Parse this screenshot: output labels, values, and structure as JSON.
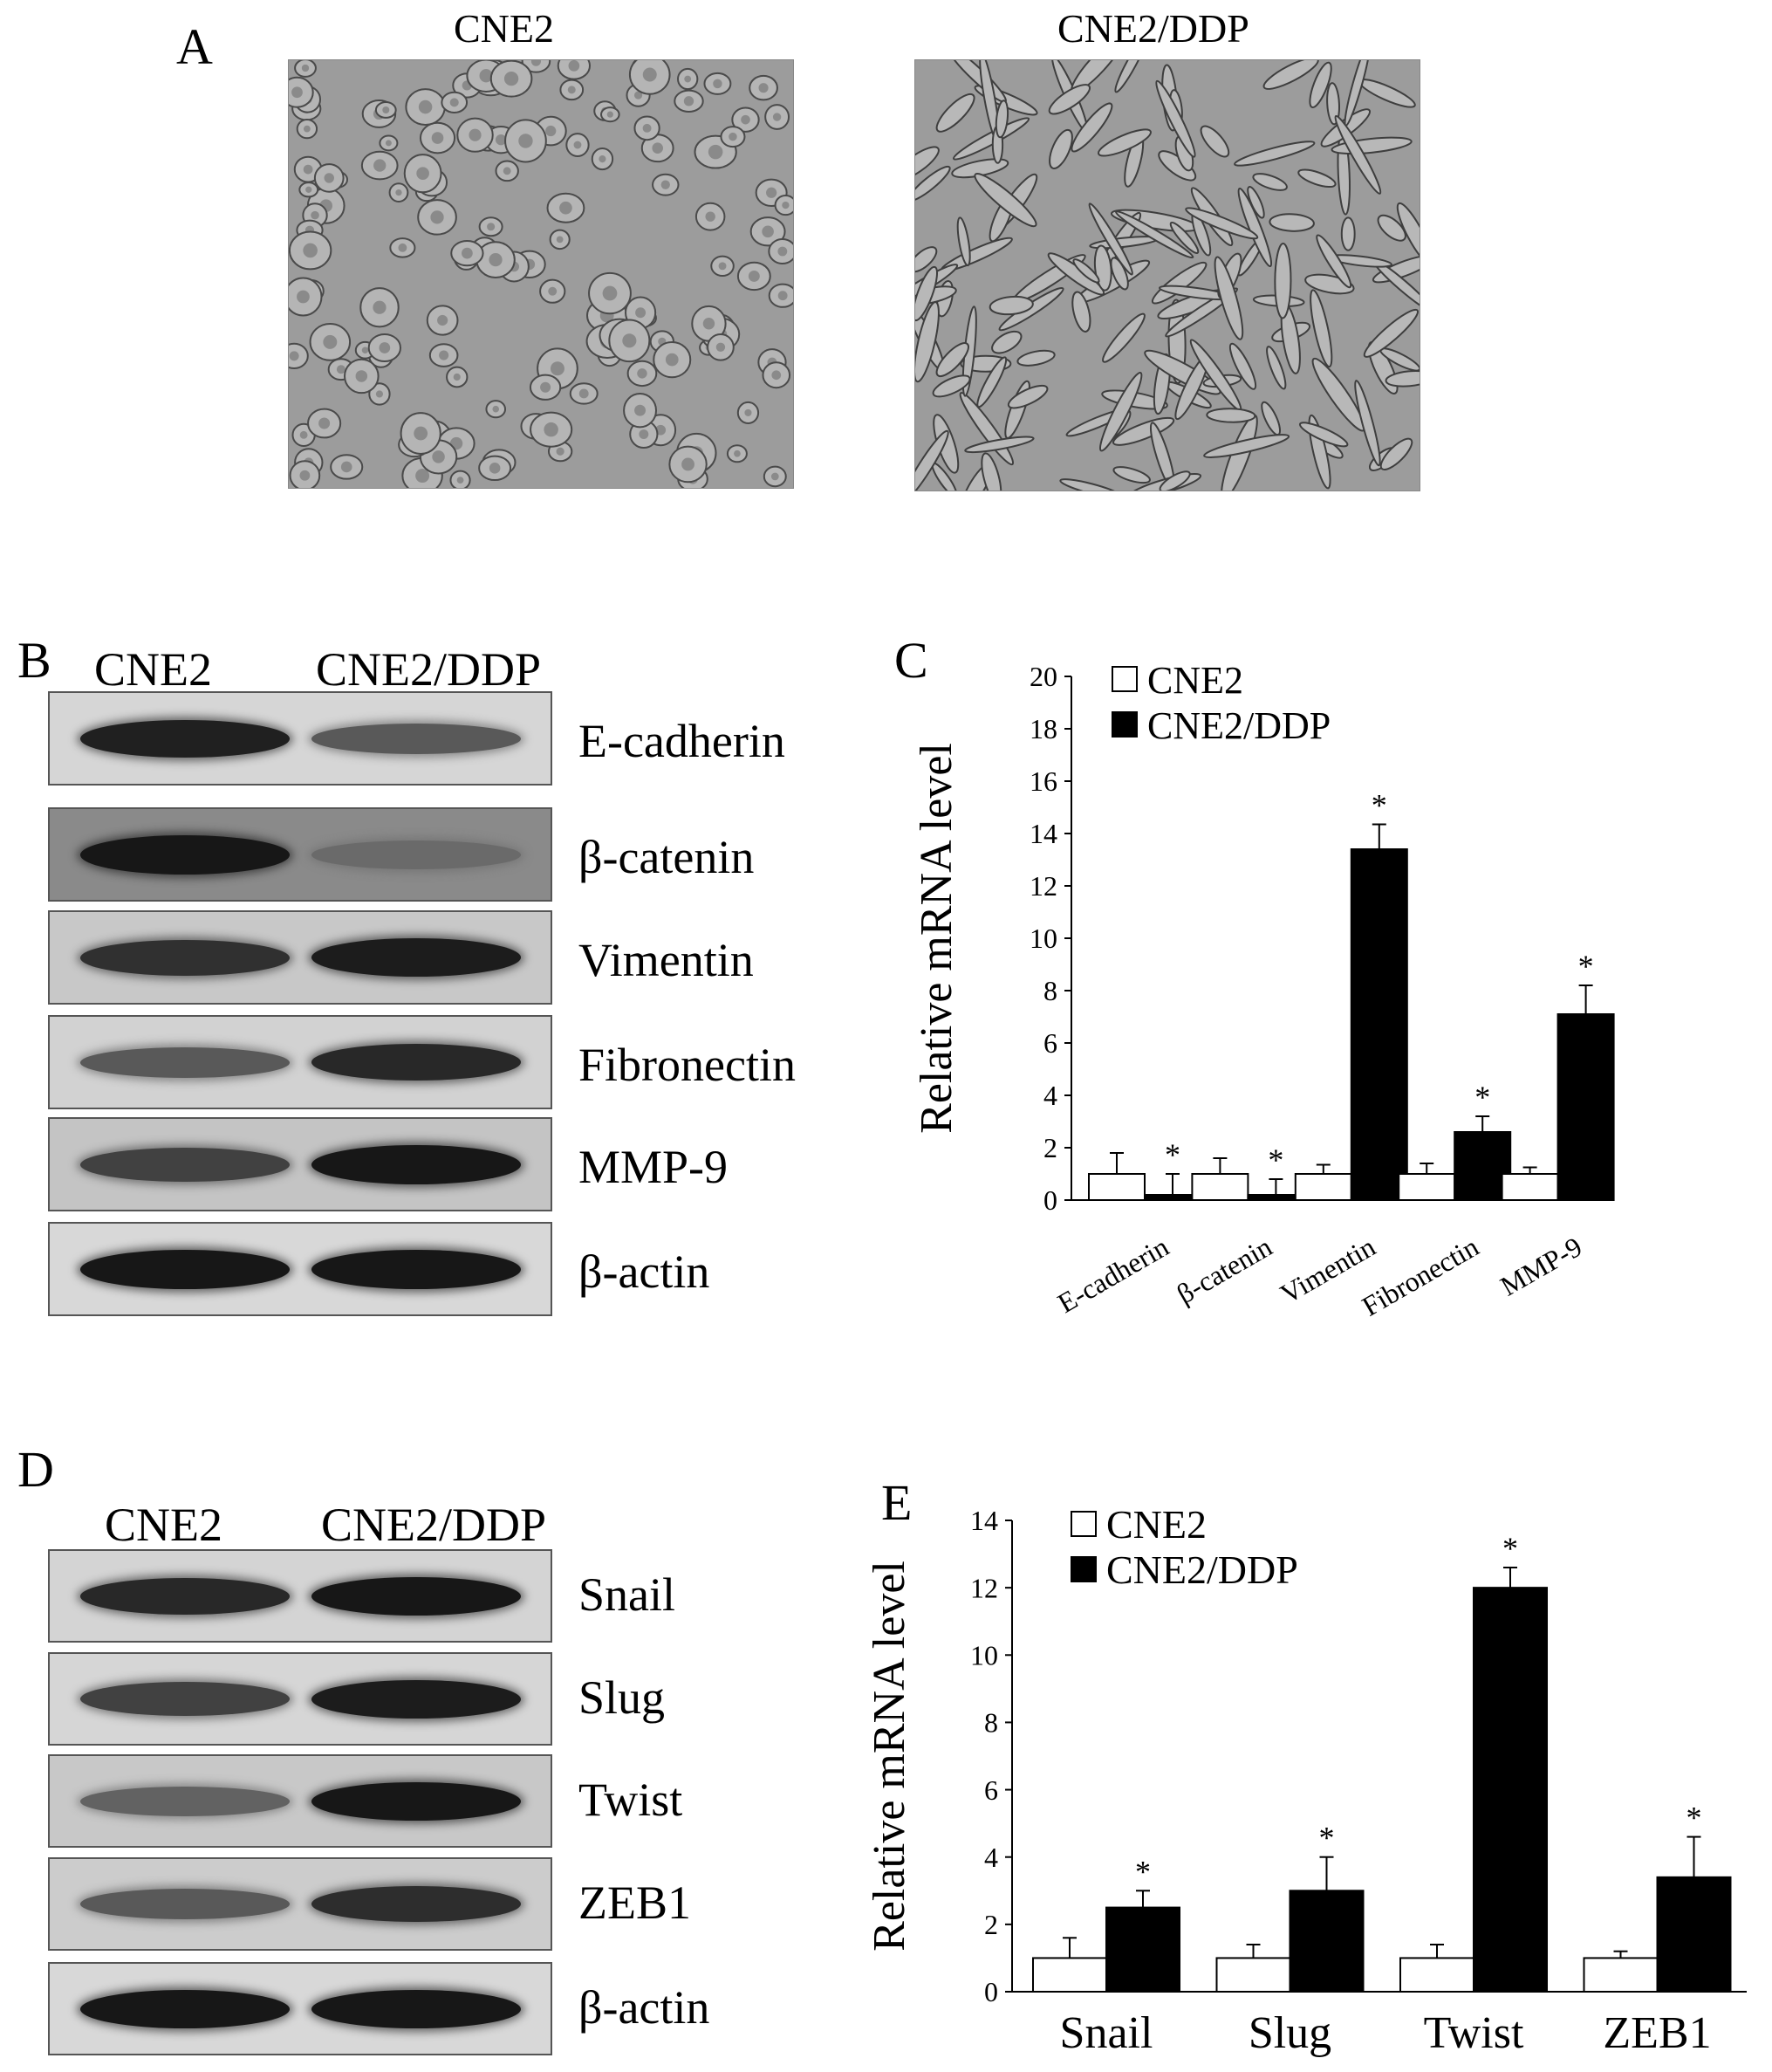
{
  "panel_a": {
    "letter": "A",
    "images": [
      {
        "label": "CNE2",
        "morphology": "cobblestone-epithelial"
      },
      {
        "label": "CNE2/DDP",
        "morphology": "spindle-mesenchymal"
      }
    ]
  },
  "panel_b": {
    "letter": "B",
    "lanes": [
      "CNE2",
      "CNE2/DDP"
    ],
    "blots": [
      {
        "label": "E-cadherin",
        "intensity": [
          0.9,
          0.55
        ],
        "bg": "#d6d6d6"
      },
      {
        "label": "β-catenin",
        "intensity": [
          0.95,
          0.45
        ],
        "bg": "#8a8a8a"
      },
      {
        "label": "Vimentin",
        "intensity": [
          0.8,
          0.92
        ],
        "bg": "#c8c8c8"
      },
      {
        "label": "Fibronectin",
        "intensity": [
          0.55,
          0.85
        ],
        "bg": "#d2d2d2"
      },
      {
        "label": "MMP-9",
        "intensity": [
          0.7,
          0.95
        ],
        "bg": "#c4c4c4"
      },
      {
        "label": "β-actin",
        "intensity": [
          0.95,
          0.95
        ],
        "bg": "#d8d8d8"
      }
    ]
  },
  "panel_d": {
    "letter": "D",
    "lanes": [
      "CNE2",
      "CNE2/DDP"
    ],
    "blots": [
      {
        "label": "Snail",
        "intensity": [
          0.85,
          0.95
        ],
        "bg": "#d4d4d4"
      },
      {
        "label": "Slug",
        "intensity": [
          0.7,
          0.92
        ],
        "bg": "#d6d6d6"
      },
      {
        "label": "Twist",
        "intensity": [
          0.5,
          0.95
        ],
        "bg": "#c8c8c8"
      },
      {
        "label": "ZEB1",
        "intensity": [
          0.55,
          0.82
        ],
        "bg": "#cccccc"
      },
      {
        "label": "β-actin",
        "intensity": [
          0.95,
          0.95
        ],
        "bg": "#d8d8d8"
      }
    ]
  },
  "chart_data": [
    {
      "panel": "C",
      "type": "bar",
      "categories": [
        "E-cadherin",
        "β-catenin",
        "Vimentin",
        "Fibronectin",
        "MMP-9"
      ],
      "series": [
        {
          "name": "CNE2",
          "values": [
            1.0,
            1.0,
            1.0,
            1.0,
            1.0
          ],
          "errors": [
            0.8,
            0.6,
            0.35,
            0.4,
            0.25
          ],
          "color": "#ffffff"
        },
        {
          "name": "CNE2/DDP",
          "values": [
            0.2,
            0.2,
            13.4,
            2.6,
            7.1
          ],
          "errors": [
            0.8,
            0.6,
            0.95,
            0.6,
            1.1
          ],
          "color": "#000000"
        }
      ],
      "significance": [
        "*",
        "*",
        "*",
        "*",
        "*"
      ],
      "ylabel": "Relative mRNA level",
      "ylim": [
        0,
        20
      ],
      "yticks": [
        0,
        2,
        4,
        6,
        8,
        10,
        12,
        14,
        16,
        18,
        20
      ],
      "xtick_rotation": "diagonal",
      "legend": "top-left",
      "grid": false
    },
    {
      "panel": "E",
      "type": "bar",
      "categories": [
        "Snail",
        "Slug",
        "Twist",
        "ZEB1"
      ],
      "series": [
        {
          "name": "CNE2",
          "values": [
            1.0,
            1.0,
            1.0,
            1.0
          ],
          "errors": [
            0.6,
            0.4,
            0.4,
            0.2
          ],
          "color": "#ffffff"
        },
        {
          "name": "CNE2/DDP",
          "values": [
            2.5,
            3.0,
            12.0,
            3.4
          ],
          "errors": [
            0.5,
            1.0,
            0.6,
            1.2
          ],
          "color": "#000000"
        }
      ],
      "significance": [
        "*",
        "*",
        "*",
        "*"
      ],
      "ylabel": "Relative mRNA level",
      "ylim": [
        0,
        14
      ],
      "yticks": [
        0,
        2,
        4,
        6,
        8,
        10,
        12,
        14
      ],
      "legend": "top-left",
      "grid": false
    }
  ]
}
